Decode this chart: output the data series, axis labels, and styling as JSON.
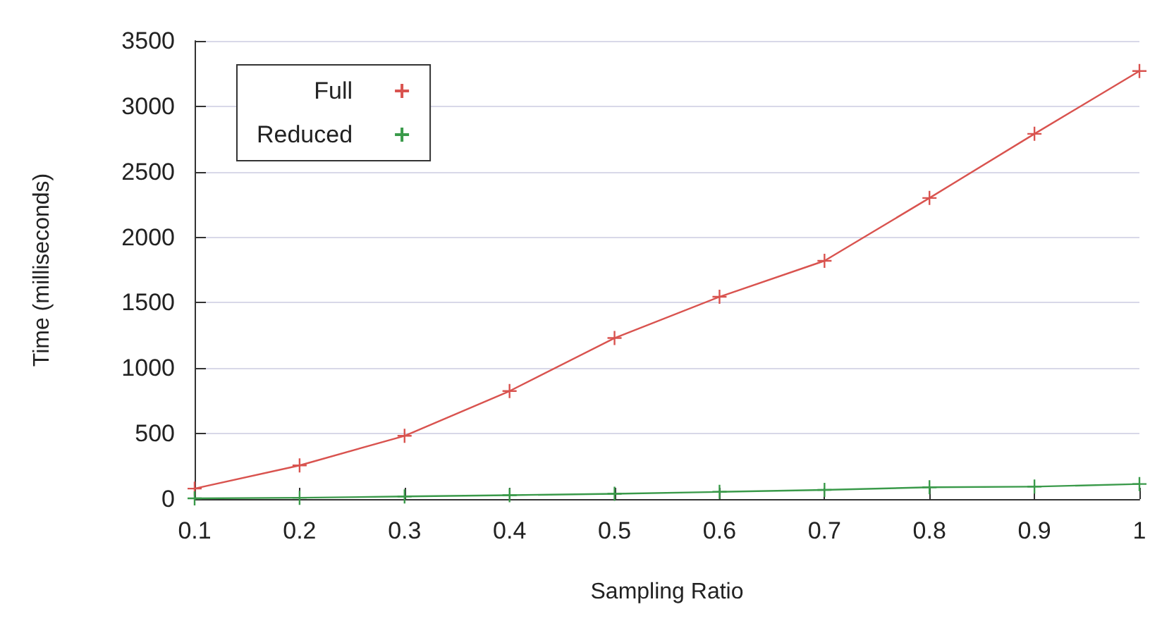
{
  "chart_data": {
    "type": "line",
    "xlabel": "Sampling Ratio",
    "ylabel": "Time (milliseconds)",
    "x": [
      0.1,
      0.2,
      0.3,
      0.4,
      0.5,
      0.6,
      0.7,
      0.8,
      0.9,
      1
    ],
    "series": [
      {
        "name": "Full",
        "color": "#d9534f",
        "values": [
          80,
          257,
          483,
          825,
          1230,
          1545,
          1820,
          2300,
          2790,
          3270
        ]
      },
      {
        "name": "Reduced",
        "color": "#3a9a4a",
        "values": [
          5,
          10,
          20,
          30,
          40,
          55,
          70,
          90,
          95,
          115
        ]
      }
    ],
    "xlim": [
      0.1,
      1
    ],
    "xticks": [
      0.1,
      0.2,
      0.3,
      0.4,
      0.5,
      0.6,
      0.7,
      0.8,
      0.9,
      1
    ],
    "ylim": [
      0,
      3500
    ],
    "yticks": [
      0,
      500,
      1000,
      1500,
      2000,
      2500,
      3000,
      3500
    ],
    "grid": "y",
    "legend": "top left",
    "marker": "cross",
    "line_style": "solid"
  }
}
